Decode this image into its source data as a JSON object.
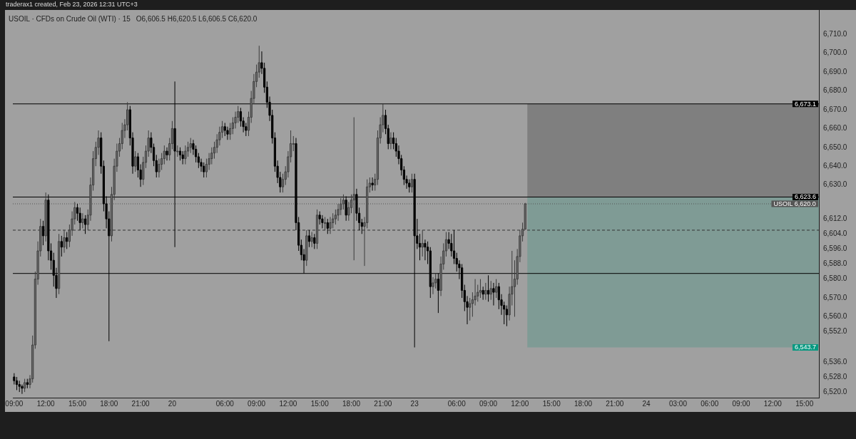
{
  "chart_data": {
    "type": "candlestick",
    "title": "USOIL · CFDs on Crude Oil (WTI) · 15",
    "subtitle": "O6,606.5 H6,620.5 L6,606.5 C6,620.0",
    "annotations": [
      "traderax1 created, Feb 23, 2026 12:31 UTC+3"
    ],
    "categories": [
      "09:00",
      null,
      null,
      null,
      null,
      null,
      null,
      null,
      null,
      null,
      null,
      null,
      "12:00",
      null,
      null,
      null,
      null,
      null,
      null,
      null,
      null,
      null,
      null,
      null,
      "15:00",
      null,
      null,
      null,
      null,
      null,
      null,
      null,
      null,
      null,
      null,
      null,
      "18:00",
      null,
      null,
      null,
      null,
      null,
      null,
      null,
      null,
      null,
      null,
      null,
      "21:00",
      null,
      null,
      null,
      null,
      null,
      null,
      null,
      null,
      null,
      null,
      null,
      "20",
      null,
      null,
      null,
      null,
      null,
      null,
      null,
      null,
      null,
      null,
      null,
      null,
      null,
      null,
      null,
      null,
      null,
      null,
      null,
      "06:00",
      null,
      null,
      null,
      null,
      null,
      null,
      null,
      null,
      null,
      null,
      null,
      "09:00",
      null,
      null,
      null,
      null,
      null,
      null,
      null,
      null,
      null,
      null,
      null,
      "12:00",
      null,
      null,
      null,
      null,
      null,
      null,
      null,
      null,
      null,
      null,
      null,
      "15:00",
      null,
      null,
      null,
      null,
      null,
      null,
      null,
      null,
      null,
      null,
      null,
      "18:00",
      null,
      null,
      null,
      null,
      null,
      null,
      null,
      null,
      null,
      null,
      null,
      "21:00",
      null,
      null,
      null,
      null,
      null,
      null,
      null,
      null,
      null,
      null,
      null,
      "23",
      null,
      null,
      null,
      null,
      null,
      null,
      null,
      null,
      null,
      null,
      null,
      null,
      null,
      null,
      null,
      "06:00",
      null,
      null,
      null,
      null,
      null,
      null,
      null,
      null,
      null,
      null,
      null,
      "09:00",
      null,
      null,
      null,
      null,
      null,
      null,
      null,
      null,
      null,
      null,
      null,
      "12:00",
      null,
      null,
      null,
      null,
      null,
      null,
      null,
      null,
      null,
      null,
      null,
      "15:00",
      null,
      null,
      null,
      null,
      null,
      null,
      null,
      null,
      null,
      null,
      null,
      "18:00",
      null,
      null,
      null,
      null,
      null,
      null,
      null,
      null,
      null,
      null,
      null,
      "21:00",
      null,
      null,
      null,
      null,
      null,
      null,
      null,
      null,
      null,
      null,
      null,
      "24",
      null,
      null,
      null,
      null,
      null,
      null,
      null,
      null,
      null,
      null,
      null,
      "03:00",
      null,
      null,
      null,
      null,
      null,
      null,
      null,
      null,
      null,
      null,
      null,
      "06:00",
      null,
      null,
      null,
      null,
      null,
      null,
      null,
      null,
      null,
      null,
      null,
      "09:00",
      null,
      null,
      null,
      null,
      null,
      null,
      null,
      null,
      null,
      null,
      null,
      "12:00",
      null,
      null,
      null,
      null,
      null,
      null,
      null,
      null,
      null,
      null,
      null,
      "15:00",
      null,
      null,
      null,
      null,
      null
    ],
    "ohlc": [
      [
        6528,
        6530,
        6524,
        6526
      ],
      [
        6526,
        6528,
        6521,
        6524
      ],
      [
        6524,
        6526,
        6520,
        6523
      ],
      [
        6523,
        6524,
        6519,
        6522
      ],
      [
        6522,
        6527,
        6520,
        6525
      ],
      [
        6525,
        6527,
        6522,
        6524
      ],
      [
        6524,
        6529,
        6522,
        6527
      ],
      [
        6527,
        6550,
        6525,
        6545
      ],
      [
        6545,
        6584,
        6543,
        6580
      ],
      [
        6580,
        6600,
        6577,
        6595
      ],
      [
        6595,
        6612,
        6592,
        6608
      ],
      [
        6608,
        6611,
        6598,
        6603
      ],
      [
        6603,
        6626,
        6600,
        6622
      ],
      [
        6622,
        6625,
        6590,
        6595
      ],
      [
        6595,
        6599,
        6585,
        6590
      ],
      [
        6590,
        6594,
        6576,
        6582
      ],
      [
        6582,
        6586,
        6570,
        6575
      ],
      [
        6575,
        6604,
        6572,
        6600
      ],
      [
        6600,
        6603,
        6592,
        6597
      ],
      [
        6597,
        6606,
        6594,
        6602
      ],
      [
        6602,
        6605,
        6596,
        6600
      ],
      [
        6600,
        6609,
        6597,
        6606
      ],
      [
        6606,
        6616,
        6603,
        6612
      ],
      [
        6612,
        6621,
        6609,
        6618
      ],
      [
        6618,
        6620,
        6611,
        6615
      ],
      [
        6615,
        6618,
        6606,
        6610
      ],
      [
        6610,
        6615,
        6607,
        6612
      ],
      [
        6612,
        6614,
        6604,
        6609
      ],
      [
        6609,
        6617,
        6606,
        6614
      ],
      [
        6614,
        6634,
        6611,
        6630
      ],
      [
        6630,
        6648,
        6627,
        6644
      ],
      [
        6644,
        6653,
        6640,
        6650
      ],
      [
        6650,
        6659,
        6646,
        6655
      ],
      [
        6655,
        6658,
        6636,
        6640
      ],
      [
        6640,
        6643,
        6616,
        6620
      ],
      [
        6620,
        6624,
        6607,
        6612
      ],
      [
        6612,
        6616,
        6547,
        6603
      ],
      [
        6603,
        6629,
        6600,
        6625
      ],
      [
        6625,
        6644,
        6622,
        6640
      ],
      [
        6640,
        6652,
        6637,
        6648
      ],
      [
        6648,
        6655,
        6645,
        6652
      ],
      [
        6652,
        6663,
        6649,
        6659
      ],
      [
        6659,
        6665,
        6655,
        6662
      ],
      [
        6662,
        6674,
        6659,
        6670
      ],
      [
        6670,
        6672,
        6651,
        6655
      ],
      [
        6655,
        6658,
        6636,
        6640
      ],
      [
        6640,
        6648,
        6637,
        6645
      ],
      [
        6645,
        6647,
        6634,
        6638
      ],
      [
        6638,
        6641,
        6629,
        6633
      ],
      [
        6633,
        6645,
        6630,
        6642
      ],
      [
        6642,
        6651,
        6639,
        6648
      ],
      [
        6648,
        6659,
        6645,
        6655
      ],
      [
        6655,
        6658,
        6647,
        6650
      ],
      [
        6650,
        6652,
        6640,
        6643
      ],
      [
        6643,
        6646,
        6634,
        6637
      ],
      [
        6637,
        6644,
        6634,
        6641
      ],
      [
        6641,
        6647,
        6638,
        6644
      ],
      [
        6644,
        6651,
        6641,
        6648
      ],
      [
        6648,
        6650,
        6643,
        6646
      ],
      [
        6646,
        6655,
        6643,
        6652
      ],
      [
        6652,
        6664,
        6649,
        6660
      ],
      [
        6660,
        6685,
        6597,
        6648
      ],
      [
        6648,
        6651,
        6645,
        6648
      ],
      [
        6648,
        6650,
        6643,
        6646
      ],
      [
        6646,
        6648,
        6641,
        6644
      ],
      [
        6644,
        6651,
        6641,
        6648
      ],
      [
        6648,
        6653,
        6645,
        6650
      ],
      [
        6650,
        6655,
        6647,
        6652
      ],
      [
        6652,
        6654,
        6646,
        6649
      ],
      [
        6649,
        6651,
        6642,
        6645
      ],
      [
        6645,
        6647,
        6639,
        6642
      ],
      [
        6642,
        6644,
        6637,
        6640
      ],
      [
        6640,
        6642,
        6634,
        6637
      ],
      [
        6637,
        6644,
        6634,
        6641
      ],
      [
        6641,
        6647,
        6638,
        6644
      ],
      [
        6644,
        6650,
        6641,
        6647
      ],
      [
        6647,
        6653,
        6644,
        6650
      ],
      [
        6650,
        6657,
        6647,
        6654
      ],
      [
        6654,
        6661,
        6651,
        6658
      ],
      [
        6658,
        6664,
        6655,
        6661
      ],
      [
        6661,
        6663,
        6656,
        6659
      ],
      [
        6659,
        6661,
        6654,
        6657
      ],
      [
        6657,
        6663,
        6654,
        6660
      ],
      [
        6660,
        6666,
        6657,
        6663
      ],
      [
        6663,
        6669,
        6660,
        6666
      ],
      [
        6666,
        6672,
        6663,
        6669
      ],
      [
        6669,
        6671,
        6661,
        6664
      ],
      [
        6664,
        6666,
        6658,
        6661
      ],
      [
        6661,
        6663,
        6656,
        6659
      ],
      [
        6659,
        6669,
        6656,
        6666
      ],
      [
        6666,
        6680,
        6663,
        6676
      ],
      [
        6676,
        6689,
        6673,
        6685
      ],
      [
        6685,
        6694,
        6682,
        6690
      ],
      [
        6690,
        6704,
        6687,
        6695
      ],
      [
        6695,
        6701,
        6689,
        6692
      ],
      [
        6692,
        6695,
        6679,
        6682
      ],
      [
        6682,
        6685,
        6671,
        6674
      ],
      [
        6674,
        6677,
        6664,
        6667
      ],
      [
        6667,
        6670,
        6652,
        6655
      ],
      [
        6655,
        6658,
        6637,
        6640
      ],
      [
        6640,
        6643,
        6631,
        6634
      ],
      [
        6634,
        6637,
        6626,
        6629
      ],
      [
        6629,
        6636,
        6626,
        6633
      ],
      [
        6633,
        6640,
        6630,
        6637
      ],
      [
        6637,
        6648,
        6634,
        6645
      ],
      [
        6645,
        6659,
        6642,
        6652
      ],
      [
        6652,
        6656,
        6648,
        6652
      ],
      [
        6652,
        6655,
        6606,
        6610
      ],
      [
        6610,
        6613,
        6595,
        6598
      ],
      [
        6598,
        6601,
        6590,
        6593
      ],
      [
        6593,
        6596,
        6583,
        6590
      ],
      [
        6590,
        6606,
        6587,
        6603
      ],
      [
        6603,
        6606,
        6597,
        6600
      ],
      [
        6600,
        6605,
        6597,
        6602
      ],
      [
        6602,
        6604,
        6596,
        6599
      ],
      [
        6599,
        6617,
        6596,
        6614
      ],
      [
        6614,
        6616,
        6609,
        6612
      ],
      [
        6612,
        6614,
        6607,
        6610
      ],
      [
        6610,
        6613,
        6606,
        6610
      ],
      [
        6610,
        6612,
        6604,
        6607
      ],
      [
        6607,
        6613,
        6604,
        6610
      ],
      [
        6610,
        6615,
        6607,
        6612
      ],
      [
        6612,
        6617,
        6609,
        6614
      ],
      [
        6614,
        6620,
        6611,
        6617
      ],
      [
        6617,
        6623,
        6614,
        6620
      ],
      [
        6620,
        6625,
        6617,
        6622
      ],
      [
        6622,
        6624,
        6611,
        6614
      ],
      [
        6614,
        6621,
        6611,
        6618
      ],
      [
        6618,
        6625,
        6615,
        6622
      ],
      [
        6622,
        6666,
        6590,
        6625
      ],
      [
        6625,
        6628,
        6611,
        6615
      ],
      [
        6615,
        6618,
        6606,
        6610
      ],
      [
        6610,
        6612,
        6604,
        6608
      ],
      [
        6608,
        6613,
        6587,
        6610
      ],
      [
        6610,
        6633,
        6607,
        6629
      ],
      [
        6629,
        6634,
        6626,
        6631
      ],
      [
        6631,
        6634,
        6627,
        6630
      ],
      [
        6630,
        6636,
        6627,
        6633
      ],
      [
        6633,
        6659,
        6630,
        6655
      ],
      [
        6655,
        6666,
        6652,
        6662
      ],
      [
        6662,
        6673.1,
        6658,
        6667
      ],
      [
        6667,
        6670,
        6657,
        6660
      ],
      [
        6660,
        6662,
        6649,
        6652
      ],
      [
        6652,
        6658,
        6649,
        6655
      ],
      [
        6655,
        6658,
        6649,
        6652
      ],
      [
        6652,
        6655,
        6645,
        6648
      ],
      [
        6648,
        6651,
        6641,
        6644
      ],
      [
        6644,
        6646,
        6635,
        6638
      ],
      [
        6638,
        6640,
        6630,
        6633
      ],
      [
        6633,
        6635,
        6628,
        6631
      ],
      [
        6631,
        6633,
        6626,
        6629
      ],
      [
        6629,
        6636,
        6626,
        6633
      ],
      [
        6633,
        6636,
        6543.7,
        6603
      ],
      [
        6603,
        6612,
        6596,
        6599
      ],
      [
        6599,
        6604,
        6590,
        6597
      ],
      [
        6597,
        6606,
        6592,
        6599
      ],
      [
        6599,
        6601,
        6590,
        6597
      ],
      [
        6597,
        6600,
        6588,
        6595
      ],
      [
        6595,
        6597,
        6570,
        6576
      ],
      [
        6576,
        6581,
        6572,
        6578
      ],
      [
        6578,
        6583,
        6575,
        6580
      ],
      [
        6580,
        6583,
        6562,
        6574
      ],
      [
        6574,
        6592,
        6571,
        6588
      ],
      [
        6588,
        6599,
        6585,
        6595
      ],
      [
        6595,
        6605,
        6592,
        6601
      ],
      [
        6601,
        6605,
        6596,
        6599
      ],
      [
        6599,
        6604,
        6592,
        6595
      ],
      [
        6595,
        6606,
        6588,
        6591
      ],
      [
        6591,
        6594,
        6584,
        6588
      ],
      [
        6588,
        6590,
        6580,
        6586
      ],
      [
        6586,
        6588,
        6570,
        6574
      ],
      [
        6574,
        6577,
        6563,
        6568
      ],
      [
        6568,
        6571,
        6556,
        6565
      ],
      [
        6565,
        6570,
        6558,
        6567
      ],
      [
        6567,
        6573,
        6560,
        6569
      ],
      [
        6569,
        6580,
        6566,
        6571
      ],
      [
        6571,
        6577,
        6568,
        6573
      ],
      [
        6573,
        6580,
        6570,
        6574
      ],
      [
        6574,
        6576,
        6569,
        6572
      ],
      [
        6572,
        6578,
        6569,
        6574
      ],
      [
        6574,
        6582,
        6568,
        6572
      ],
      [
        6572,
        6579,
        6569,
        6575
      ],
      [
        6575,
        6578,
        6566,
        6573
      ],
      [
        6573,
        6580,
        6570,
        6576
      ],
      [
        6576,
        6578,
        6564,
        6569
      ],
      [
        6569,
        6572,
        6561,
        6566
      ],
      [
        6566,
        6568,
        6556,
        6564
      ],
      [
        6564,
        6566,
        6555,
        6561
      ],
      [
        6561,
        6576,
        6558,
        6572
      ],
      [
        6572,
        6595,
        6566,
        6576
      ],
      [
        6576,
        6590,
        6560,
        6580
      ],
      [
        6580,
        6596,
        6577,
        6592
      ],
      [
        6592,
        6606,
        6589,
        6603
      ],
      [
        6603,
        6610,
        6600,
        6606.5
      ],
      [
        6606.5,
        6620.5,
        6606.5,
        6620
      ],
      null,
      null,
      null,
      null,
      null,
      null,
      null,
      null,
      null,
      null,
      null,
      null,
      null,
      null,
      null,
      null,
      null,
      null,
      null,
      null,
      null,
      null,
      null,
      null,
      null,
      null,
      null,
      null,
      null,
      null,
      null,
      null,
      null,
      null,
      null,
      null,
      null,
      null,
      null,
      null,
      null,
      null,
      null,
      null,
      null,
      null,
      null,
      null,
      null,
      null,
      null,
      null,
      null,
      null,
      null,
      null,
      null,
      null,
      null,
      null,
      null,
      null,
      null,
      null,
      null,
      null,
      null,
      null,
      null,
      null,
      null,
      null,
      null,
      null,
      null,
      null,
      null,
      null,
      null,
      null,
      null,
      null,
      null,
      null,
      null,
      null,
      null,
      null,
      null,
      null,
      null,
      null,
      null,
      null,
      null,
      null,
      null,
      null,
      null,
      null,
      null,
      null,
      null,
      null,
      null,
      null,
      null,
      null,
      null,
      null,
      null
    ],
    "ylim": [
      6517,
      6723
    ],
    "yticks": [
      {
        "value": 6710,
        "label": "6,710.0"
      },
      {
        "value": 6700,
        "label": "6,700.0"
      },
      {
        "value": 6690,
        "label": "6,690.0"
      },
      {
        "value": 6680,
        "label": "6,680.0"
      },
      {
        "value": 6670,
        "label": "6,670.0"
      },
      {
        "value": 6660,
        "label": "6,660.0"
      },
      {
        "value": 6650,
        "label": "6,650.0"
      },
      {
        "value": 6640,
        "label": "6,640.0"
      },
      {
        "value": 6630,
        "label": "6,630.0"
      },
      {
        "value": 6612,
        "label": "6,612.0"
      },
      {
        "value": 6604,
        "label": "6,604.0"
      },
      {
        "value": 6596,
        "label": "6,596.0"
      },
      {
        "value": 6588,
        "label": "6,588.0"
      },
      {
        "value": 6580,
        "label": "6,580.0"
      },
      {
        "value": 6570,
        "label": "6,570.0"
      },
      {
        "value": 6560,
        "label": "6,560.0"
      },
      {
        "value": 6552,
        "label": "6,552.0"
      },
      {
        "value": 6536,
        "label": "6,536.0"
      },
      {
        "value": 6528,
        "label": "6,528.0"
      },
      {
        "value": 6520,
        "label": "6,520.0"
      }
    ],
    "ref_lines": [
      {
        "axis": "y",
        "value": 6673.1,
        "label": "6,673.1",
        "color": "#000000"
      },
      {
        "axis": "y",
        "value": 6623.6,
        "label": "6,623.6",
        "color": "#000000"
      },
      {
        "axis": "y",
        "value": 6620.0,
        "label": "USOIL 6,620.0",
        "color": "#555555",
        "line_style": "dotted"
      },
      {
        "axis": "y",
        "value": 6606,
        "label": null,
        "color": "#333333",
        "line_style": "dashed"
      },
      {
        "axis": "y",
        "value": 6583,
        "label": null,
        "color": "#000000"
      }
    ],
    "bands": [
      {
        "axis": "y",
        "from": 6623.6,
        "to": 6673.1,
        "label": null,
        "color": "#7f7f7f"
      },
      {
        "axis": "y",
        "from": 6543.7,
        "to": 6623.6,
        "label": "6,543.7",
        "color": "#7f9b95"
      }
    ]
  }
}
